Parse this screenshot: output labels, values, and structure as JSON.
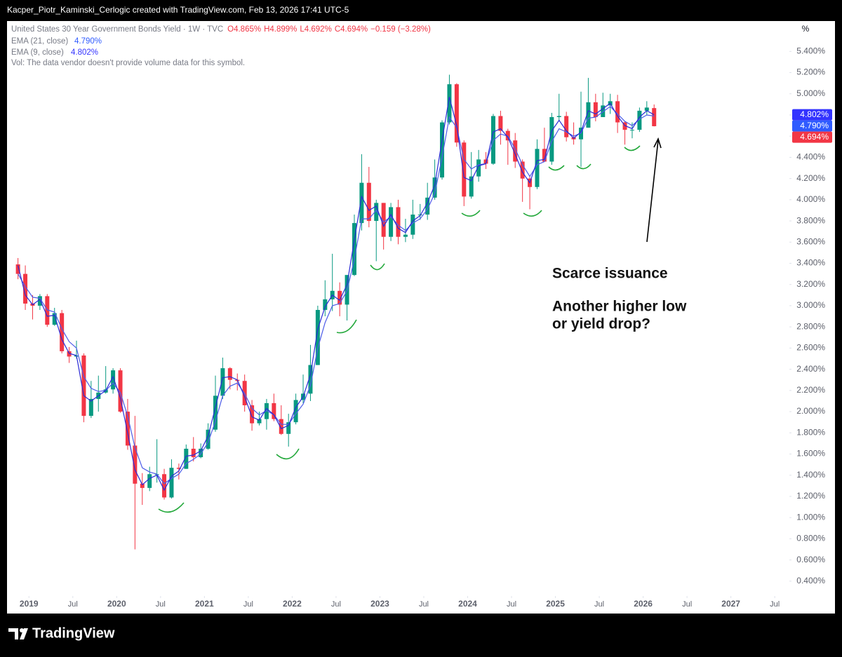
{
  "top_bar": "Kacper_Piotr_Kaminski_Cerlogic created with TradingView.com, Feb 13, 2026 17:41 UTC-5",
  "footer": "TradingView",
  "chart_data": {
    "type": "candlestick",
    "title": "United States 30 Year Government Bonds Yield · 1W · TVC",
    "ohlc": [
      "O4.865%",
      "H4.899%",
      "L4.692%",
      "C4.694%",
      "−0.159 (−3.28%)"
    ],
    "volume_note": "Vol: The data vendor doesn't provide volume data for this symbol.",
    "y_unit": "%",
    "up_color": "#089981",
    "down_color": "#f23645",
    "x": [
      "2018-11",
      "2018-12",
      "2019-01",
      "2019-02",
      "2019-03",
      "2019-04",
      "2019-05",
      "2019-06",
      "2019-07",
      "2019-08",
      "2019-09",
      "2019-10",
      "2019-11",
      "2019-12",
      "2020-01",
      "2020-02",
      "2020-03",
      "2020-04",
      "2020-05",
      "2020-06",
      "2020-07",
      "2020-08",
      "2020-09",
      "2020-10",
      "2020-11",
      "2020-12",
      "2021-01",
      "2021-02",
      "2021-03",
      "2021-04",
      "2021-05",
      "2021-06",
      "2021-07",
      "2021-08",
      "2021-09",
      "2021-10",
      "2021-11",
      "2021-12",
      "2022-01",
      "2022-02",
      "2022-03",
      "2022-04",
      "2022-05",
      "2022-06",
      "2022-07",
      "2022-08",
      "2022-09",
      "2022-10",
      "2022-11",
      "2022-12",
      "2023-01",
      "2023-02",
      "2023-03",
      "2023-04",
      "2023-05",
      "2023-06",
      "2023-07",
      "2023-08",
      "2023-09",
      "2023-10",
      "2023-11",
      "2023-12",
      "2024-01",
      "2024-02",
      "2024-03",
      "2024-04",
      "2024-05",
      "2024-06",
      "2024-07",
      "2024-08",
      "2024-09",
      "2024-10",
      "2024-11",
      "2024-12",
      "2025-01",
      "2025-02",
      "2025-03",
      "2025-04",
      "2025-05",
      "2025-06",
      "2025-07",
      "2025-08",
      "2025-09",
      "2025-10",
      "2025-11",
      "2025-12",
      "2026-01",
      "2026-02"
    ],
    "open": [
      3.39,
      3.3,
      3.02,
      3.0,
      3.09,
      2.82,
      2.93,
      2.57,
      2.52,
      2.53,
      1.96,
      2.12,
      2.18,
      2.21,
      2.39,
      2.0,
      1.68,
      1.32,
      1.28,
      1.41,
      1.41,
      1.19,
      1.47,
      1.46,
      1.65,
      1.57,
      1.65,
      1.83,
      2.15,
      2.41,
      2.3,
      2.29,
      2.06,
      1.89,
      1.93,
      2.08,
      1.93,
      1.79,
      1.9,
      2.11,
      2.17,
      2.44,
      2.96,
      3.06,
      3.14,
      3.01,
      3.29,
      3.78,
      4.16,
      3.8,
      3.97,
      3.65,
      3.93,
      3.65,
      3.67,
      3.86,
      3.86,
      4.02,
      4.21,
      4.73,
      5.09,
      4.54,
      4.03,
      4.22,
      4.38,
      4.34,
      4.79,
      4.65,
      4.56,
      4.36,
      4.2,
      4.12,
      4.48,
      4.36,
      4.78,
      4.79,
      4.59,
      4.57,
      4.68,
      4.92,
      4.78,
      4.89,
      4.93,
      4.73,
      4.66,
      4.66,
      4.84,
      4.865
    ],
    "high": [
      3.45,
      3.38,
      3.1,
      3.11,
      3.11,
      2.98,
      2.96,
      2.61,
      2.67,
      2.55,
      2.29,
      2.34,
      2.43,
      2.41,
      2.41,
      2.12,
      1.96,
      1.42,
      1.48,
      1.74,
      1.46,
      1.55,
      1.51,
      1.69,
      1.76,
      1.7,
      1.89,
      2.34,
      2.51,
      2.42,
      2.36,
      2.35,
      2.11,
      2.0,
      2.12,
      2.17,
      2.06,
      1.98,
      2.17,
      2.35,
      2.63,
      3.0,
      3.24,
      3.49,
      3.22,
      3.27,
      3.86,
      4.43,
      4.31,
      4.0,
      3.97,
      3.97,
      4.0,
      3.82,
      4.0,
      3.96,
      4.16,
      4.38,
      4.75,
      5.18,
      5.1,
      4.56,
      4.45,
      4.47,
      4.45,
      4.81,
      4.84,
      4.67,
      4.63,
      4.38,
      4.22,
      4.57,
      4.68,
      4.82,
      5.0,
      4.83,
      4.73,
      5.02,
      5.15,
      5.0,
      5.01,
      5.0,
      4.99,
      4.74,
      4.73,
      4.87,
      4.93,
      4.899
    ],
    "low": [
      3.25,
      2.96,
      2.87,
      2.96,
      2.8,
      2.81,
      2.55,
      2.46,
      2.5,
      1.9,
      1.94,
      2.0,
      2.17,
      2.17,
      1.99,
      1.64,
      0.7,
      1.12,
      1.25,
      1.33,
      1.17,
      1.18,
      1.36,
      1.46,
      1.53,
      1.56,
      1.64,
      1.81,
      2.12,
      2.21,
      2.2,
      2.0,
      1.82,
      1.87,
      1.83,
      1.91,
      1.78,
      1.67,
      1.88,
      2.08,
      2.1,
      2.44,
      2.9,
      2.95,
      2.9,
      2.86,
      3.28,
      3.71,
      3.74,
      3.42,
      3.53,
      3.61,
      3.58,
      3.6,
      3.63,
      3.81,
      3.81,
      4.0,
      4.19,
      4.71,
      4.5,
      3.94,
      4.01,
      4.17,
      4.29,
      4.33,
      4.52,
      4.33,
      4.3,
      3.98,
      3.91,
      4.1,
      4.36,
      4.33,
      4.74,
      4.55,
      4.52,
      4.31,
      4.68,
      4.74,
      4.78,
      4.81,
      4.63,
      4.52,
      4.58,
      4.64,
      4.8,
      4.692
    ],
    "close": [
      3.3,
      3.02,
      3.0,
      3.09,
      2.82,
      2.93,
      2.57,
      2.52,
      2.53,
      1.96,
      2.12,
      2.18,
      2.21,
      2.39,
      2.0,
      1.68,
      1.32,
      1.28,
      1.41,
      1.41,
      1.19,
      1.47,
      1.46,
      1.65,
      1.57,
      1.65,
      1.83,
      2.15,
      2.41,
      2.3,
      2.29,
      2.06,
      1.89,
      1.93,
      2.08,
      1.93,
      1.79,
      1.9,
      2.11,
      2.17,
      2.44,
      2.96,
      3.06,
      3.14,
      3.01,
      3.29,
      3.78,
      4.16,
      3.8,
      3.97,
      3.65,
      3.93,
      3.65,
      3.67,
      3.86,
      3.86,
      4.02,
      4.21,
      4.73,
      5.09,
      4.54,
      4.03,
      4.22,
      4.38,
      4.34,
      4.79,
      4.65,
      4.56,
      4.36,
      4.2,
      4.12,
      4.48,
      4.36,
      4.78,
      4.79,
      4.59,
      4.57,
      4.68,
      4.92,
      4.78,
      4.89,
      4.93,
      4.73,
      4.66,
      4.66,
      4.84,
      4.87,
      4.694
    ],
    "series": [
      {
        "name": "EMA (21, close)",
        "color": "#4d5ce8",
        "values": [
          3.3,
          3.18,
          3.08,
          3.07,
          2.96,
          2.94,
          2.78,
          2.66,
          2.6,
          2.33,
          2.22,
          2.19,
          2.2,
          2.27,
          2.18,
          1.96,
          1.66,
          1.47,
          1.43,
          1.41,
          1.32,
          1.37,
          1.41,
          1.51,
          1.55,
          1.6,
          1.71,
          1.91,
          2.15,
          2.24,
          2.27,
          2.17,
          2.03,
          1.97,
          2.01,
          1.97,
          1.88,
          1.88,
          1.98,
          2.07,
          2.25,
          2.6,
          2.84,
          3.0,
          3.02,
          3.14,
          3.44,
          3.82,
          3.82,
          3.9,
          3.79,
          3.84,
          3.76,
          3.71,
          3.78,
          3.82,
          3.91,
          4.06,
          4.4,
          4.78,
          4.68,
          4.38,
          4.29,
          4.33,
          4.34,
          4.56,
          4.62,
          4.6,
          4.48,
          4.33,
          4.22,
          4.33,
          4.36,
          4.55,
          4.67,
          4.64,
          4.6,
          4.63,
          4.77,
          4.78,
          4.83,
          4.88,
          4.81,
          4.74,
          4.7,
          4.76,
          4.8,
          4.79
        ]
      },
      {
        "name": "EMA (9, close)",
        "color": "#2a2ad6",
        "values": [
          3.38,
          3.1,
          3.01,
          3.06,
          2.9,
          2.91,
          2.68,
          2.55,
          2.53,
          2.15,
          2.1,
          2.15,
          2.2,
          2.33,
          2.13,
          1.8,
          1.45,
          1.31,
          1.37,
          1.4,
          1.26,
          1.39,
          1.44,
          1.58,
          1.59,
          1.63,
          1.77,
          2.04,
          2.32,
          2.33,
          2.3,
          2.14,
          1.95,
          1.92,
          2.03,
          1.97,
          1.84,
          1.87,
          2.04,
          2.14,
          2.35,
          2.78,
          2.99,
          3.1,
          3.05,
          3.2,
          3.62,
          4.03,
          3.9,
          3.94,
          3.75,
          3.86,
          3.73,
          3.69,
          3.8,
          3.85,
          3.97,
          4.14,
          4.56,
          4.97,
          4.7,
          4.21,
          4.18,
          4.32,
          4.34,
          4.64,
          4.67,
          4.59,
          4.43,
          4.26,
          4.16,
          4.37,
          4.38,
          4.65,
          4.75,
          4.65,
          4.58,
          4.64,
          4.84,
          4.81,
          4.86,
          4.91,
          4.79,
          4.7,
          4.67,
          4.78,
          4.84,
          4.802
        ]
      }
    ],
    "tags": [
      {
        "value": 4.802,
        "label": "4.802%",
        "color": "#3333ff"
      },
      {
        "value": 4.79,
        "label": "4.790%",
        "color": "#2f5bff"
      },
      {
        "value": 4.694,
        "label": "4.694%",
        "color": "#f23645"
      }
    ],
    "annotations": [
      "Scarce issuance",
      "Another higher low",
      "or yield drop?"
    ],
    "xlim": [
      "2018-10",
      "2027-09"
    ],
    "xticks": [
      {
        "value": "2019-01",
        "label": "2019"
      },
      {
        "value": "2019-07",
        "label": "Jul"
      },
      {
        "value": "2020-01",
        "label": "2020"
      },
      {
        "value": "2020-07",
        "label": "Jul"
      },
      {
        "value": "2021-01",
        "label": "2021"
      },
      {
        "value": "2021-07",
        "label": "Jul"
      },
      {
        "value": "2022-01",
        "label": "2022"
      },
      {
        "value": "2022-07",
        "label": "Jul"
      },
      {
        "value": "2023-01",
        "label": "2023"
      },
      {
        "value": "2023-07",
        "label": "Jul"
      },
      {
        "value": "2024-01",
        "label": "2024"
      },
      {
        "value": "2024-07",
        "label": "Jul"
      },
      {
        "value": "2025-01",
        "label": "2025"
      },
      {
        "value": "2025-07",
        "label": "Jul"
      },
      {
        "value": "2026-01",
        "label": "2026"
      },
      {
        "value": "2026-07",
        "label": "Jul"
      },
      {
        "value": "2027-01",
        "label": "2027"
      },
      {
        "value": "2027-07",
        "label": "Jul"
      }
    ],
    "ylim": [
      0.26,
      5.68
    ],
    "yticks": [
      {
        "value": 0.4,
        "label": "0.400%"
      },
      {
        "value": 0.6,
        "label": "0.600%"
      },
      {
        "value": 0.8,
        "label": "0.800%"
      },
      {
        "value": 1.0,
        "label": "1.000%"
      },
      {
        "value": 1.2,
        "label": "1.200%"
      },
      {
        "value": 1.4,
        "label": "1.400%"
      },
      {
        "value": 1.6,
        "label": "1.600%"
      },
      {
        "value": 1.8,
        "label": "1.800%"
      },
      {
        "value": 2.0,
        "label": "2.000%"
      },
      {
        "value": 2.2,
        "label": "2.200%"
      },
      {
        "value": 2.4,
        "label": "2.400%"
      },
      {
        "value": 2.6,
        "label": "2.600%"
      },
      {
        "value": 2.8,
        "label": "2.800%"
      },
      {
        "value": 3.0,
        "label": "3.000%"
      },
      {
        "value": 3.2,
        "label": "3.200%"
      },
      {
        "value": 3.4,
        "label": "3.400%"
      },
      {
        "value": 3.6,
        "label": "3.600%"
      },
      {
        "value": 3.8,
        "label": "3.800%"
      },
      {
        "value": 4.0,
        "label": "4.000%"
      },
      {
        "value": 4.2,
        "label": "4.200%"
      },
      {
        "value": 4.4,
        "label": "4.400%"
      },
      {
        "value": 4.6,
        "label": "4.600%"
      },
      {
        "value": 4.8,
        "label": "4.800%"
      },
      {
        "value": 5.0,
        "label": "5.000%"
      },
      {
        "value": 5.2,
        "label": "5.200%"
      },
      {
        "value": 5.4,
        "label": "5.400%"
      }
    ]
  }
}
